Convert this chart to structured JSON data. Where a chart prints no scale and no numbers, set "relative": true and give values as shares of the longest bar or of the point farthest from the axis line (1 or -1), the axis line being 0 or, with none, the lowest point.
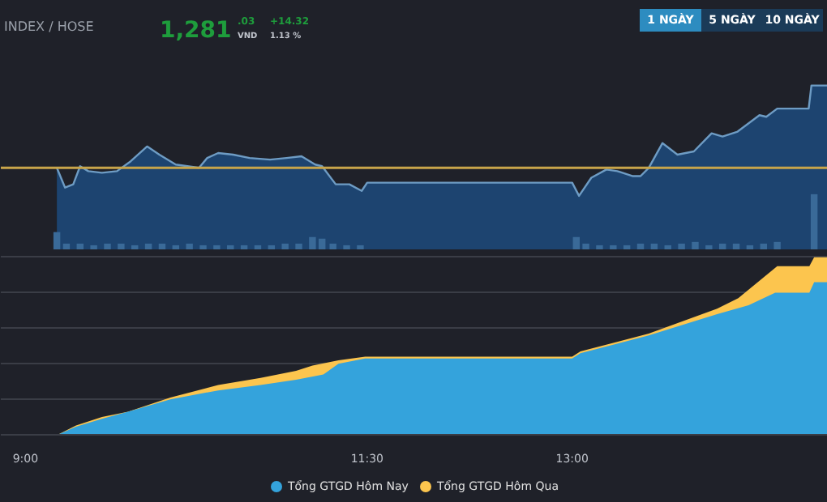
{
  "chart_data": [
    {
      "type": "other",
      "title": "INDEX / HOSE",
      "annotations": [
        "1,281",
        ".03",
        "VND",
        "+14.32",
        "1.13 %",
        "1 NGÀY",
        "5 NGÀY",
        "10 NGÀY"
      ]
    },
    {
      "type": "area",
      "relative": true,
      "xlim": [
        8.82,
        14.87
      ],
      "tick_labels": false,
      "grid": false,
      "legend": false,
      "series": [
        {
          "type": "bar",
          "color": "#3a6a98",
          "x": [
            9.23,
            9.3,
            9.4,
            9.5,
            9.6,
            9.7,
            9.8,
            9.9,
            10.0,
            10.1,
            10.2,
            10.3,
            10.4,
            10.5,
            10.6,
            10.7,
            10.8,
            10.9,
            11.0,
            11.1,
            11.17,
            11.25,
            11.35,
            11.45,
            13.03,
            13.1,
            13.2,
            13.3,
            13.4,
            13.5,
            13.6,
            13.7,
            13.8,
            13.9,
            14.0,
            14.1,
            14.2,
            14.3,
            14.4,
            14.5,
            14.77
          ],
          "values": [
            0.11,
            0.04,
            0.04,
            0.03,
            0.04,
            0.04,
            0.03,
            0.04,
            0.04,
            0.03,
            0.04,
            0.03,
            0.03,
            0.03,
            0.03,
            0.03,
            0.03,
            0.04,
            0.04,
            0.08,
            0.07,
            0.04,
            0.03,
            0.03,
            0.08,
            0.04,
            0.03,
            0.03,
            0.03,
            0.04,
            0.04,
            0.03,
            0.04,
            0.05,
            0.03,
            0.04,
            0.04,
            0.03,
            0.04,
            0.05,
            0.34
          ]
        },
        {
          "type": "area",
          "color": "#6e9cc4",
          "x": [
            9.23,
            9.29,
            9.35,
            9.4,
            9.46,
            9.56,
            9.67,
            9.77,
            9.89,
            9.98,
            10.1,
            10.27,
            10.33,
            10.41,
            10.52,
            10.64,
            10.79,
            10.91,
            11.02,
            11.12,
            11.17,
            11.27,
            11.37,
            11.46,
            11.5,
            13.0,
            13.05,
            13.14,
            13.25,
            13.33,
            13.44,
            13.5,
            13.56,
            13.66,
            13.77,
            13.89,
            14.02,
            14.1,
            14.21,
            14.37,
            14.42,
            14.5,
            14.73,
            14.75,
            14.87
          ],
          "values": [
            0.5,
            0.38,
            0.4,
            0.51,
            0.48,
            0.47,
            0.48,
            0.54,
            0.63,
            0.58,
            0.52,
            0.5,
            0.56,
            0.59,
            0.58,
            0.56,
            0.55,
            0.56,
            0.57,
            0.52,
            0.51,
            0.4,
            0.4,
            0.36,
            0.41,
            0.41,
            0.33,
            0.44,
            0.49,
            0.48,
            0.45,
            0.45,
            0.5,
            0.65,
            0.58,
            0.6,
            0.71,
            0.69,
            0.72,
            0.82,
            0.81,
            0.86,
            0.86,
            1.0,
            1.0
          ]
        }
      ],
      "ref_lines": [
        {
          "axis": "y",
          "value": 0.5,
          "color": "#c8a54a"
        }
      ]
    },
    {
      "type": "area",
      "relative": true,
      "xlim": [
        8.82,
        14.87
      ],
      "tick_labels": "x",
      "grid": "y",
      "legend": "bottom",
      "xticks": [
        {
          "value": 9,
          "label": "9:00"
        },
        {
          "value": 11.5,
          "label": "11:30"
        },
        {
          "value": 13,
          "label": "13:00"
        }
      ],
      "series": [
        {
          "name": "Tổng GTGD Hôm Qua",
          "color": "#fcc54e",
          "x": [
            8.985,
            9.235,
            9.37,
            9.56,
            9.75,
            10.06,
            10.41,
            10.72,
            10.98,
            11.1,
            11.29,
            11.485,
            13.0,
            13.06,
            13.56,
            14.06,
            14.215,
            14.5,
            14.735,
            14.77,
            14.87
          ],
          "values": [
            0,
            0,
            0.052,
            0.1,
            0.13,
            0.21,
            0.28,
            0.32,
            0.36,
            0.39,
            0.42,
            0.44,
            0.44,
            0.47,
            0.57,
            0.71,
            0.77,
            0.95,
            0.95,
            1.0,
            1.0
          ]
        },
        {
          "name": "Tổng GTGD Hôm Nay",
          "color": "#34a3dc",
          "x": [
            8.985,
            9.235,
            9.37,
            9.56,
            9.75,
            10.06,
            10.41,
            10.72,
            10.98,
            11.18,
            11.29,
            11.485,
            13.0,
            13.06,
            13.56,
            14.06,
            14.29,
            14.485,
            14.735,
            14.77,
            14.87
          ],
          "values": [
            0,
            0,
            0.046,
            0.09,
            0.13,
            0.2,
            0.25,
            0.28,
            0.31,
            0.34,
            0.4,
            0.43,
            0.43,
            0.46,
            0.56,
            0.68,
            0.73,
            0.8,
            0.8,
            0.86,
            0.86
          ]
        }
      ]
    }
  ]
}
